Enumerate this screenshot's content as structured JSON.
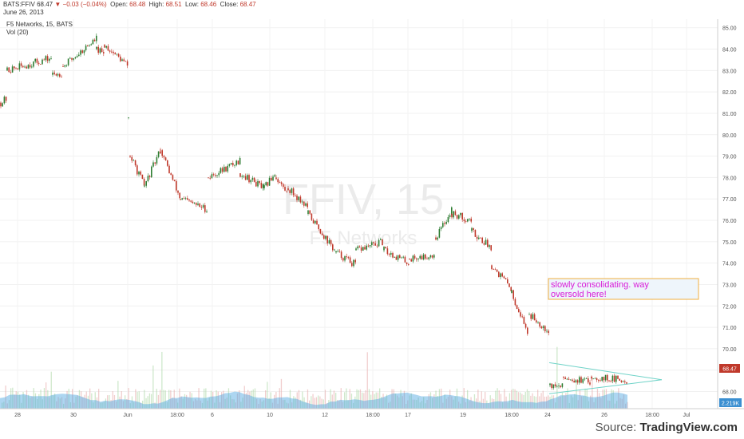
{
  "header": {
    "symbol": "BATS:FFIV",
    "last": "68.47",
    "change_arrow": "▼",
    "change": "−0.03 (−0.04%)",
    "open_label": "Open:",
    "open": "68.48",
    "high_label": "High:",
    "high": "68.51",
    "low_label": "Low:",
    "low": "68.46",
    "close_label": "Close:",
    "close": "68.47",
    "date": "June 26, 2013"
  },
  "legend": {
    "series_title": "F5 Networks, 15, BATS",
    "volume_title": "Vol (20)"
  },
  "watermark": {
    "big": "FFIV, 15",
    "small": "F5 Networks"
  },
  "annotation": {
    "text_line1": "slowly consolidating. way",
    "text_line2": "oversold here!"
  },
  "last_price_tag": "68.47",
  "volume_tag": "2.219K",
  "source": {
    "prefix": "Source: ",
    "name": "TradingView.com"
  },
  "colors": {
    "up": "#2e7d32",
    "down": "#c0392b",
    "annotation_text": "#d81bd8",
    "triangle": "#6fd3c8",
    "volume": "#4aa3df"
  },
  "chart_data": {
    "type": "candlestick",
    "title": "F5 Networks, 15, BATS",
    "ylim": [
      67.2,
      85.4
    ],
    "y_ticks": [
      "85.00",
      "84.00",
      "83.00",
      "82.00",
      "81.00",
      "80.00",
      "79.00",
      "78.00",
      "77.00",
      "76.00",
      "75.00",
      "74.00",
      "73.00",
      "72.00",
      "71.00",
      "70.00",
      "69.00",
      "68.00"
    ],
    "x_ticks": [
      "28",
      "30",
      "Jun",
      "18:00",
      "6",
      "10",
      "12",
      "18:00",
      "17",
      "19",
      "18:00",
      "24",
      "26",
      "18:00",
      "Jul"
    ],
    "segments": [
      {
        "from": 0,
        "to": 8,
        "y0": 81.5,
        "y1": 81.7
      },
      {
        "from": 8,
        "to": 65,
        "y0": 83.0,
        "y1": 83.6
      },
      {
        "from": 65,
        "to": 78,
        "y0": 82.8,
        "y1": 82.9
      },
      {
        "from": 78,
        "to": 120,
        "y0": 83.2,
        "y1": 84.5
      },
      {
        "from": 120,
        "to": 130,
        "y0": 84.0,
        "y1": 83.7
      },
      {
        "from": 130,
        "to": 160,
        "y0": 84.2,
        "y1": 83.2
      },
      {
        "from": 160,
        "to": 162,
        "y0": 80.8,
        "y1": 79.0
      },
      {
        "from": 162,
        "to": 180,
        "y0": 79.0,
        "y1": 77.6
      },
      {
        "from": 180,
        "to": 200,
        "y0": 77.6,
        "y1": 79.3
      },
      {
        "from": 200,
        "to": 225,
        "y0": 79.3,
        "y1": 77.0
      },
      {
        "from": 225,
        "to": 260,
        "y0": 77.0,
        "y1": 76.5
      },
      {
        "from": 260,
        "to": 300,
        "y0": 78.0,
        "y1": 78.8
      },
      {
        "from": 300,
        "to": 330,
        "y0": 78.2,
        "y1": 77.5
      },
      {
        "from": 330,
        "to": 345,
        "y0": 77.5,
        "y1": 78.3
      },
      {
        "from": 345,
        "to": 360,
        "y0": 78.0,
        "y1": 77.2
      },
      {
        "from": 360,
        "to": 385,
        "y0": 77.5,
        "y1": 76.6
      },
      {
        "from": 385,
        "to": 420,
        "y0": 76.3,
        "y1": 74.5
      },
      {
        "from": 420,
        "to": 445,
        "y0": 74.5,
        "y1": 73.9
      },
      {
        "from": 445,
        "to": 480,
        "y0": 74.6,
        "y1": 75.0
      },
      {
        "from": 480,
        "to": 512,
        "y0": 74.6,
        "y1": 74.0
      },
      {
        "from": 512,
        "to": 545,
        "y0": 74.2,
        "y1": 74.4
      },
      {
        "from": 545,
        "to": 565,
        "y0": 75.2,
        "y1": 76.5
      },
      {
        "from": 565,
        "to": 590,
        "y0": 76.3,
        "y1": 76.0
      },
      {
        "from": 590,
        "to": 615,
        "y0": 75.5,
        "y1": 74.7
      },
      {
        "from": 615,
        "to": 640,
        "y0": 73.9,
        "y1": 72.8
      },
      {
        "from": 640,
        "to": 662,
        "y0": 72.6,
        "y1": 70.6
      },
      {
        "from": 662,
        "to": 688,
        "y0": 71.6,
        "y1": 70.8
      },
      {
        "from": 688,
        "to": 705,
        "y0": 68.3,
        "y1": 68.2
      },
      {
        "from": 705,
        "to": 740,
        "y0": 68.7,
        "y1": 68.4
      },
      {
        "from": 740,
        "to": 785,
        "y0": 68.7,
        "y1": 68.5
      }
    ],
    "triangle_lines": [
      {
        "x0": 688,
        "y0": 69.35,
        "x1": 829,
        "y1": 68.55
      },
      {
        "x0": 688,
        "y0": 67.9,
        "x1": 829,
        "y1": 68.55
      }
    ]
  }
}
